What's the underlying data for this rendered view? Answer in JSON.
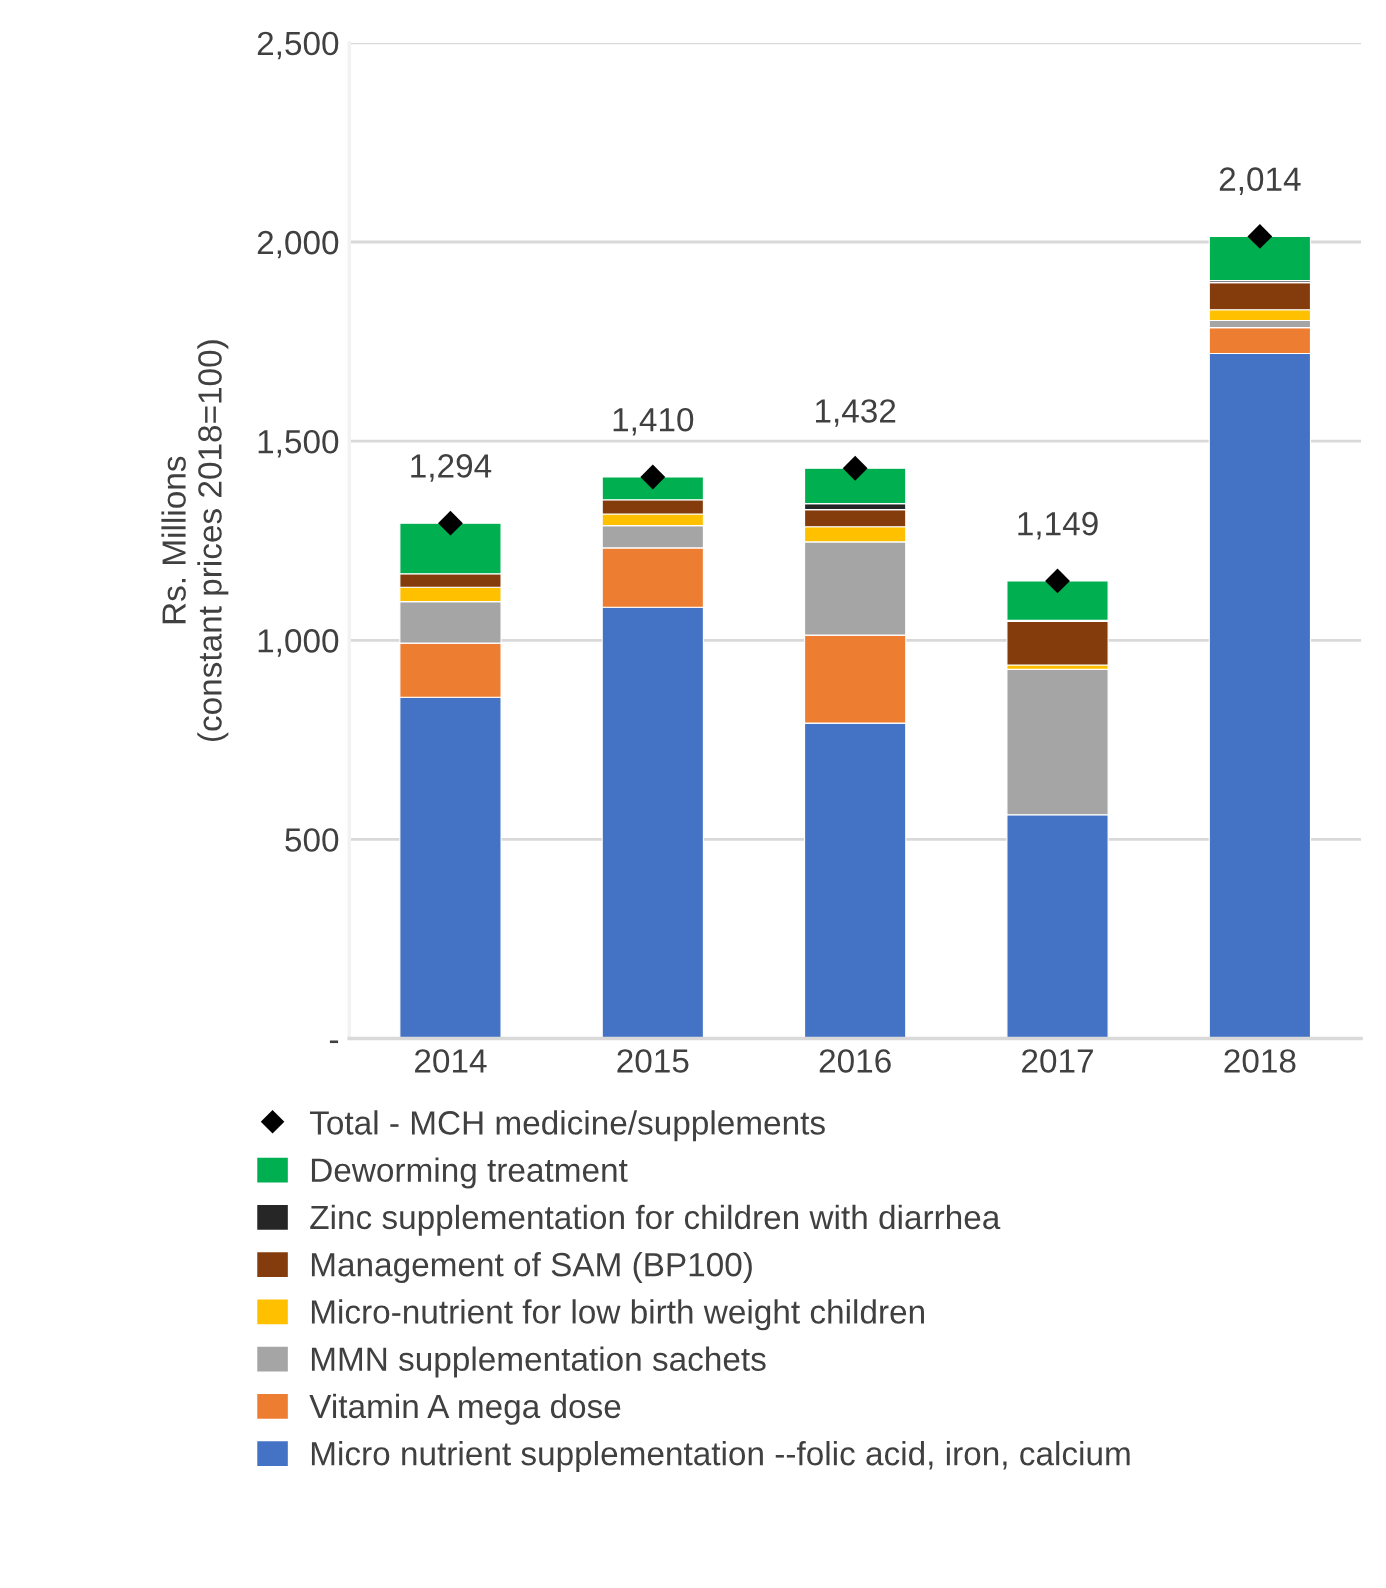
{
  "chart_data": {
    "type": "bar",
    "stacked": true,
    "ylabel": "Rs. Millions\n(constant prices 2018=100)",
    "categories": [
      "2014",
      "2015",
      "2016",
      "2017",
      "2018"
    ],
    "series": [
      {
        "name": "Micro nutrient supplementation --folic acid, iron, calcium",
        "color": "#4472c4",
        "values": [
          857,
          1083,
          792,
          562,
          1720
        ]
      },
      {
        "name": "Vitamin A mega dose",
        "color": "#ed7d31",
        "values": [
          136,
          149,
          221,
          0,
          65
        ]
      },
      {
        "name": "MMN supplementation sachets",
        "color": "#a5a5a5",
        "values": [
          104,
          56,
          234,
          365,
          18
        ]
      },
      {
        "name": "Micro-nutrient for low birth weight children",
        "color": "#ffc000",
        "values": [
          36,
          29,
          38,
          11,
          27
        ]
      },
      {
        "name": "Management of SAM (BP100)",
        "color": "#843c0c",
        "values": [
          34,
          36,
          43,
          109,
          68
        ]
      },
      {
        "name": "Zinc supplementation for children with diarrhea",
        "color": "#262626",
        "values": [
          0,
          0,
          15,
          3,
          5
        ]
      },
      {
        "name": "Deworming treatment",
        "color": "#00b050",
        "values": [
          127,
          57,
          89,
          99,
          111
        ]
      },
      {
        "name": "Total - MCH medicine/supplements",
        "type": "scatter",
        "marker": "diamond",
        "color": "#000000",
        "values": [
          1294,
          1410,
          1432,
          1149,
          2014
        ],
        "value_labels": [
          "1,294",
          "1,410",
          "1,432",
          "1,149",
          "2,014"
        ]
      }
    ],
    "ylim": [
      0,
      2500
    ],
    "yticks": [
      {
        "value": 0,
        "label": "-"
      },
      {
        "value": 500,
        "label": "500"
      },
      {
        "value": 1000,
        "label": "1,000"
      },
      {
        "value": 1500,
        "label": "1,500"
      },
      {
        "value": 2000,
        "label": "2,000"
      },
      {
        "value": 2500,
        "label": "2,500"
      }
    ],
    "grid": "y",
    "legend": "bottom"
  }
}
